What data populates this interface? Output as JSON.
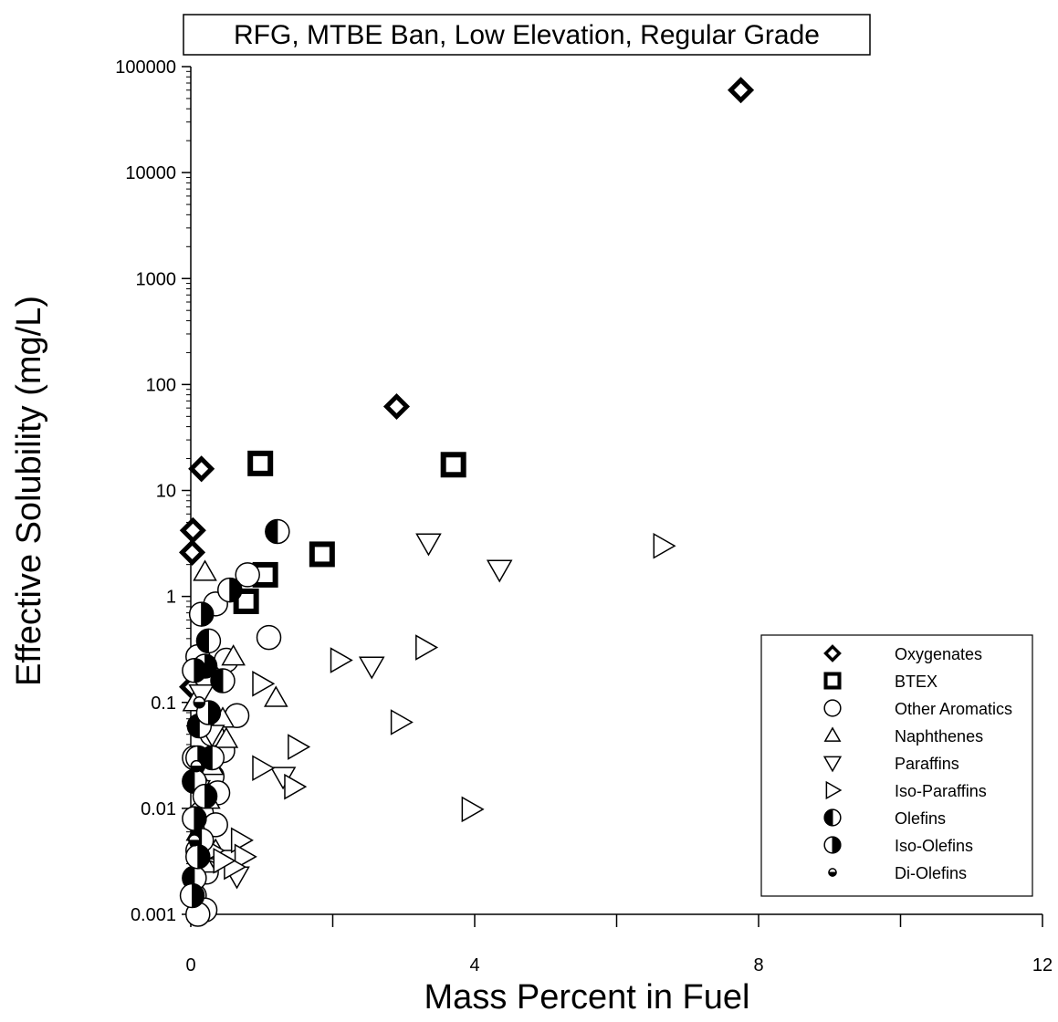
{
  "chart_data": {
    "type": "scatter",
    "title": "RFG, MTBE Ban, Low Elevation, Regular Grade",
    "xlabel": "Mass Percent in Fuel",
    "ylabel": "Effective Solubility (mg/L)",
    "xlim": [
      0,
      12
    ],
    "ylim": [
      0.001,
      100000
    ],
    "yscale": "log",
    "x_ticks": [
      0,
      4,
      8,
      12
    ],
    "x_tick_labels": [
      "0",
      "4",
      "8",
      "12"
    ],
    "y_ticks": [
      0.001,
      0.01,
      0.1,
      1,
      10,
      100,
      1000,
      10000,
      100000
    ],
    "y_tick_labels": [
      "0.001",
      "0.01",
      "0.1",
      "1",
      "10",
      "100",
      "1000",
      "10000",
      "100000"
    ],
    "grid": false,
    "legend_position": "right",
    "series": [
      {
        "name": "Oxygenates",
        "marker": "diamond",
        "points": [
          [
            7.75,
            60000
          ],
          [
            2.9,
            62
          ],
          [
            0.15,
            16
          ],
          [
            0.03,
            4.2
          ],
          [
            0.02,
            2.6
          ],
          [
            0.02,
            0.14
          ]
        ]
      },
      {
        "name": "BTEX",
        "marker": "square",
        "points": [
          [
            0.98,
            18
          ],
          [
            3.7,
            17.5
          ],
          [
            1.85,
            2.5
          ],
          [
            1.05,
            1.6
          ],
          [
            0.78,
            0.9
          ]
        ]
      },
      {
        "name": "Other Aromatics",
        "marker": "circle",
        "points": [
          [
            0.8,
            1.6
          ],
          [
            1.1,
            0.41
          ],
          [
            0.35,
            0.85
          ],
          [
            0.1,
            0.27
          ],
          [
            0.2,
            0.18
          ],
          [
            0.5,
            0.25
          ],
          [
            0.65,
            0.075
          ],
          [
            0.45,
            0.035
          ],
          [
            0.3,
            0.02
          ],
          [
            0.38,
            0.014
          ],
          [
            0.15,
            0.009
          ],
          [
            0.35,
            0.007
          ],
          [
            0.1,
            0.004
          ],
          [
            0.22,
            0.0025
          ],
          [
            0.05,
            0.0015
          ],
          [
            0.2,
            0.0011
          ],
          [
            0.1,
            0.001
          ],
          [
            0.3,
            0.05
          ],
          [
            0.05,
            0.03
          ]
        ]
      },
      {
        "name": "Naphthenes",
        "marker": "triangle-up",
        "points": [
          [
            0.2,
            1.7
          ],
          [
            0.6,
            0.27
          ],
          [
            1.2,
            0.11
          ],
          [
            0.05,
            0.1
          ],
          [
            0.45,
            0.07
          ],
          [
            0.5,
            0.045
          ],
          [
            0.3,
            0.025
          ],
          [
            0.15,
            0.018
          ],
          [
            0.25,
            0.012
          ],
          [
            0.1,
            0.006
          ],
          [
            0.35,
            0.004
          ],
          [
            0.2,
            0.003
          ],
          [
            0.05,
            0.0025
          ]
        ]
      },
      {
        "name": "Paraffins",
        "marker": "triangle-down",
        "points": [
          [
            3.35,
            3.2
          ],
          [
            4.35,
            1.8
          ],
          [
            2.55,
            0.22
          ],
          [
            1.3,
            0.02
          ],
          [
            0.65,
            0.0023
          ],
          [
            0.55,
            0.0033
          ],
          [
            0.15,
            0.12
          ],
          [
            0.3,
            0.05
          ],
          [
            0.1,
            0.015
          ]
        ]
      },
      {
        "name": "Iso-Paraffins",
        "marker": "triangle-right",
        "points": [
          [
            6.65,
            3.0
          ],
          [
            3.3,
            0.33
          ],
          [
            2.1,
            0.25
          ],
          [
            1.0,
            0.15
          ],
          [
            2.95,
            0.065
          ],
          [
            1.5,
            0.038
          ],
          [
            1.0,
            0.024
          ],
          [
            1.45,
            0.016
          ],
          [
            3.95,
            0.0098
          ],
          [
            0.7,
            0.005
          ],
          [
            0.75,
            0.0035
          ],
          [
            0.6,
            0.0028
          ],
          [
            0.3,
            0.004
          ],
          [
            0.45,
            0.0032
          ]
        ]
      },
      {
        "name": "Olefins",
        "marker": "circle-half-left",
        "points": [
          [
            1.22,
            4.1
          ],
          [
            0.25,
            0.38
          ],
          [
            0.45,
            0.16
          ],
          [
            0.12,
            0.06
          ],
          [
            0.3,
            0.03
          ],
          [
            0.05,
            0.018
          ],
          [
            0.15,
            0.005
          ],
          [
            0.05,
            0.0022
          ]
        ]
      },
      {
        "name": "Iso-Olefins",
        "marker": "circle-half-right",
        "points": [
          [
            0.55,
            1.15
          ],
          [
            0.15,
            0.68
          ],
          [
            0.2,
            0.22
          ],
          [
            0.05,
            0.2
          ],
          [
            0.25,
            0.08
          ],
          [
            0.1,
            0.03
          ],
          [
            0.2,
            0.013
          ],
          [
            0.05,
            0.008
          ],
          [
            0.1,
            0.0035
          ],
          [
            0.02,
            0.0015
          ]
        ]
      },
      {
        "name": "Di-Olefins",
        "marker": "circle-half-bottom",
        "points": [
          [
            0.12,
            0.1
          ],
          [
            0.08,
            0.025
          ],
          [
            0.05,
            0.005
          ]
        ]
      }
    ]
  }
}
